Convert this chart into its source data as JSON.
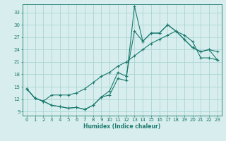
{
  "xlabel": "Humidex (Indice chaleur)",
  "bg_color": "#d8eeee",
  "grid_color": "#aad4d4",
  "line_color": "#1a7a6e",
  "spine_color": "#1a7a6e",
  "xlim": [
    -0.5,
    23.5
  ],
  "ylim": [
    8,
    35
  ],
  "xticks": [
    0,
    1,
    2,
    3,
    4,
    5,
    6,
    7,
    8,
    9,
    10,
    11,
    12,
    13,
    14,
    15,
    16,
    17,
    18,
    19,
    20,
    21,
    22,
    23
  ],
  "yticks": [
    9,
    12,
    15,
    18,
    21,
    24,
    27,
    30,
    33
  ],
  "line1_x": [
    0,
    1,
    2,
    3,
    4,
    5,
    6,
    7,
    8,
    9,
    10,
    11,
    12,
    13,
    14,
    15,
    16,
    17,
    18,
    19,
    20,
    21,
    22,
    23
  ],
  "line1_y": [
    14.5,
    12.2,
    11.5,
    10.5,
    10.2,
    9.8,
    10.0,
    9.5,
    10.5,
    12.5,
    13.0,
    17.0,
    16.5,
    34.5,
    26.0,
    28.0,
    28.0,
    30.0,
    28.5,
    26.5,
    24.5,
    23.5,
    24.0,
    23.5
  ],
  "line2_x": [
    0,
    1,
    2,
    3,
    4,
    5,
    6,
    7,
    8,
    9,
    10,
    11,
    12,
    13,
    14,
    15,
    16,
    17,
    18,
    19,
    20,
    21,
    22,
    23
  ],
  "line2_y": [
    14.5,
    12.2,
    11.5,
    10.5,
    10.2,
    9.8,
    10.0,
    9.5,
    10.5,
    12.5,
    14.0,
    18.5,
    17.5,
    28.5,
    26.0,
    28.0,
    28.0,
    30.0,
    28.5,
    26.5,
    24.5,
    23.5,
    24.0,
    21.5
  ],
  "line3_x": [
    0,
    1,
    2,
    3,
    4,
    5,
    6,
    7,
    8,
    9,
    10,
    11,
    12,
    13,
    14,
    15,
    16,
    17,
    18,
    19,
    20,
    21,
    22,
    23
  ],
  "line3_y": [
    14.5,
    12.2,
    11.5,
    13.0,
    13.0,
    13.0,
    13.5,
    14.5,
    16.0,
    17.5,
    18.5,
    20.0,
    21.0,
    22.5,
    24.0,
    25.5,
    26.5,
    27.5,
    28.5,
    27.5,
    26.0,
    22.0,
    22.0,
    21.5
  ]
}
